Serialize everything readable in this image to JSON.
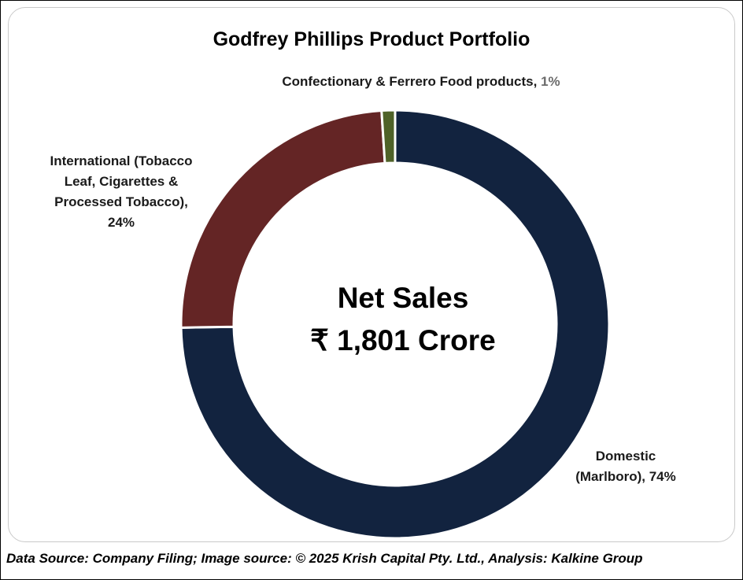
{
  "chart_data": {
    "type": "pie",
    "title": "Godfrey Phillips Product Portfolio",
    "center_label": [
      "Net Sales",
      "₹ 1,801 Crore"
    ],
    "slices": [
      {
        "name": "Domestic (Marlboro)",
        "value": 74,
        "value_label": "74%",
        "color": "#12233f"
      },
      {
        "name": "International (Tobacco Leaf, Cigarettes & Processed Tobacco)",
        "value": 24,
        "value_label": "24%",
        "color": "#642525"
      },
      {
        "name": "Confectionary & Ferrero Food products",
        "value": 1,
        "value_label": "1%",
        "color": "#4f6228"
      }
    ]
  },
  "labels": {
    "confectionary_name": "Confectionary & Ferrero Food products, ",
    "confectionary_pct": "1%",
    "international_lines": [
      "International (Tobacco",
      "Leaf, Cigarettes &",
      "Processed Tobacco),",
      "24%"
    ],
    "domestic_lines": [
      "Domestic",
      "(Marlboro), 74%"
    ]
  },
  "footer": "Data Source: Company Filing; Image source: © 2025 Krish Capital Pty. Ltd., Analysis: Kalkine Group"
}
